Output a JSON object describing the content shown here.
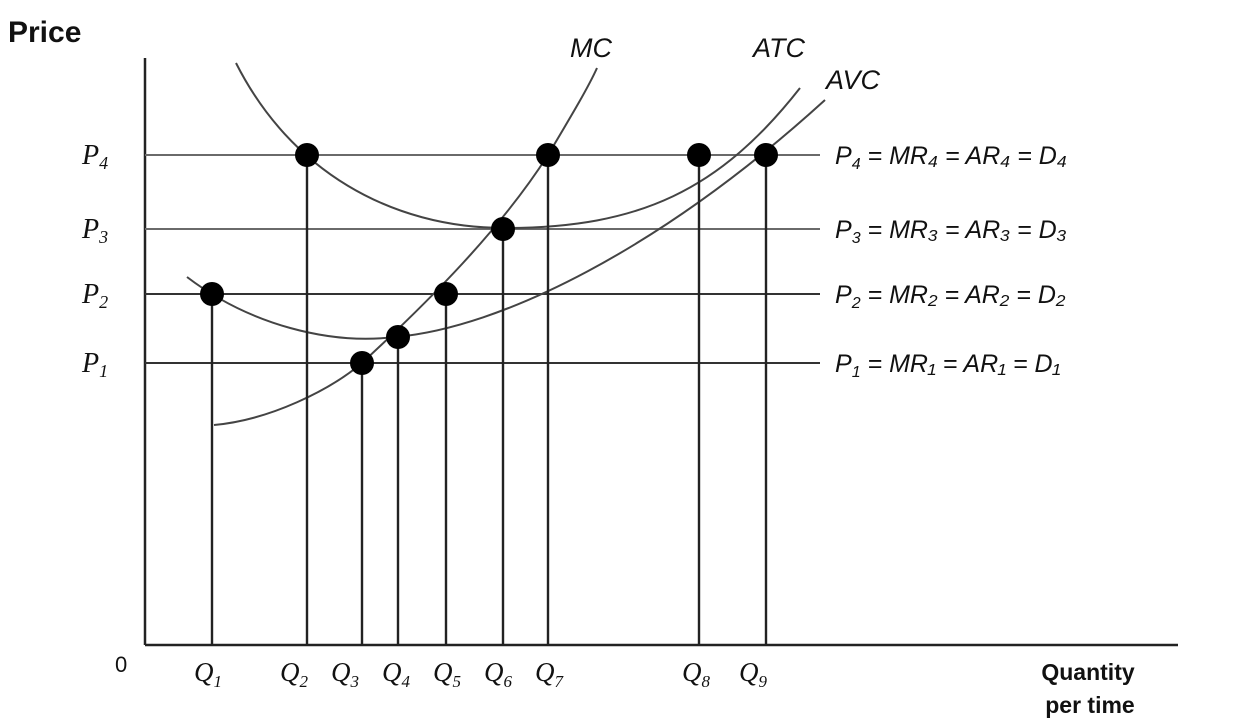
{
  "axes": {
    "y_title": "Price",
    "x_title_line1": "Quantity",
    "x_title_line2": "per time",
    "origin": "0"
  },
  "curves": {
    "mc": "MC",
    "atc": "ATC",
    "avc": "AVC"
  },
  "price_levels": [
    {
      "id": "p4",
      "sym": "P",
      "sub": "4",
      "eq": "= MR₄ = AR₄ = D₄"
    },
    {
      "id": "p3",
      "sym": "P",
      "sub": "3",
      "eq": "= MR₃ = AR₃ = D₃"
    },
    {
      "id": "p2",
      "sym": "P",
      "sub": "2",
      "eq": "= MR₂ = AR₂ = D₂"
    },
    {
      "id": "p1",
      "sym": "P",
      "sub": "1",
      "eq": "= MR₁ = AR₁ = D₁"
    }
  ],
  "quantities": [
    {
      "sym": "Q",
      "sub": "1"
    },
    {
      "sym": "Q",
      "sub": "2"
    },
    {
      "sym": "Q",
      "sub": "3"
    },
    {
      "sym": "Q",
      "sub": "4"
    },
    {
      "sym": "Q",
      "sub": "5"
    },
    {
      "sym": "Q",
      "sub": "6"
    },
    {
      "sym": "Q",
      "sub": "7"
    },
    {
      "sym": "Q",
      "sub": "8"
    },
    {
      "sym": "Q",
      "sub": "9"
    }
  ]
}
